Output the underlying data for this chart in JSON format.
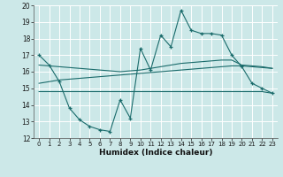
{
  "xlabel": "Humidex (Indice chaleur)",
  "xlim": [
    -0.5,
    23.5
  ],
  "ylim": [
    12,
    20
  ],
  "yticks": [
    12,
    13,
    14,
    15,
    16,
    17,
    18,
    19,
    20
  ],
  "xticks": [
    0,
    1,
    2,
    3,
    4,
    5,
    6,
    7,
    8,
    9,
    10,
    11,
    12,
    13,
    14,
    15,
    16,
    17,
    18,
    19,
    20,
    21,
    22,
    23
  ],
  "color": "#1a6b6b",
  "bg_color": "#cce8e8",
  "main_line": [
    17.0,
    16.4,
    15.4,
    13.8,
    13.1,
    12.7,
    12.5,
    12.4,
    14.3,
    13.2,
    17.4,
    16.1,
    18.2,
    17.5,
    19.7,
    18.5,
    18.3,
    18.3,
    18.2,
    17.0,
    16.3,
    15.3,
    15.0,
    14.7
  ],
  "upper_line": [
    16.4,
    16.35,
    16.3,
    16.25,
    16.2,
    16.15,
    16.1,
    16.05,
    16.0,
    16.05,
    16.1,
    16.2,
    16.3,
    16.4,
    16.5,
    16.55,
    16.6,
    16.65,
    16.7,
    16.7,
    16.4,
    16.35,
    16.3,
    16.2
  ],
  "mid_line": [
    15.3,
    15.4,
    15.5,
    15.55,
    15.6,
    15.65,
    15.7,
    15.75,
    15.8,
    15.85,
    15.9,
    15.95,
    16.0,
    16.05,
    16.1,
    16.15,
    16.2,
    16.25,
    16.3,
    16.35,
    16.35,
    16.3,
    16.25,
    16.2
  ],
  "lower_line": [
    14.8,
    14.8,
    14.8,
    14.8,
    14.8,
    14.8,
    14.8,
    14.8,
    14.8,
    14.8,
    14.8,
    14.8,
    14.8,
    14.8,
    14.8,
    14.8,
    14.8,
    14.8,
    14.8,
    14.8,
    14.8,
    14.8,
    14.8,
    14.7
  ]
}
